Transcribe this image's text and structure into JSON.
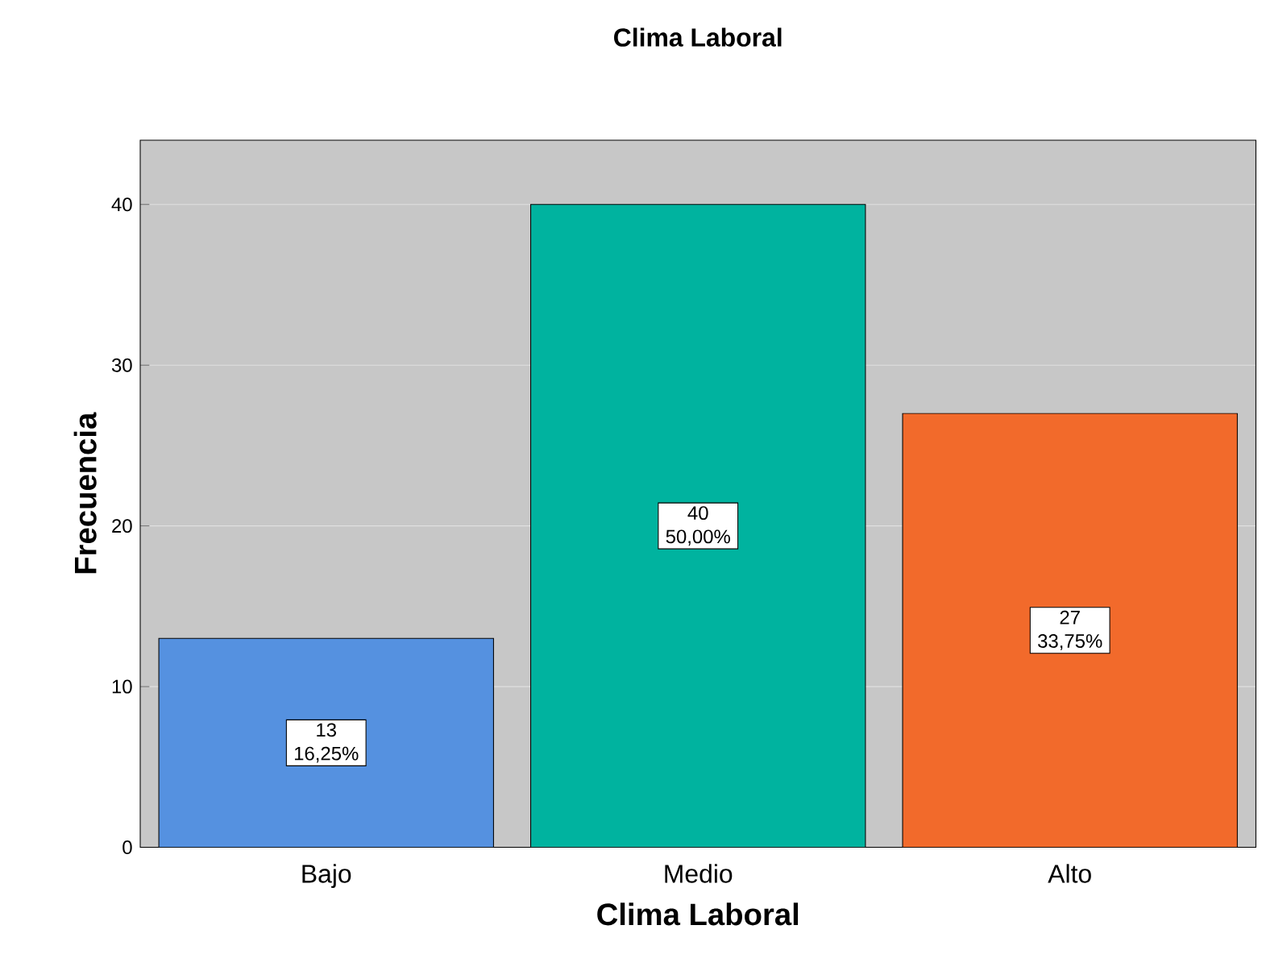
{
  "chart_data": {
    "type": "bar",
    "title": "Clima Laboral",
    "xlabel": "Clima Laboral",
    "ylabel": "Frecuencia",
    "categories": [
      "Bajo",
      "Medio",
      "Alto"
    ],
    "values": [
      13,
      40,
      27
    ],
    "colors": [
      "#5591e0",
      "#00b39f",
      "#f26a2b"
    ],
    "value_labels": [
      "13 16,25%",
      "40 50,00%",
      "27 33,75%"
    ],
    "ylim": [
      0,
      44
    ],
    "yticks": [
      0,
      10,
      20,
      30,
      40
    ],
    "grid": "y"
  }
}
